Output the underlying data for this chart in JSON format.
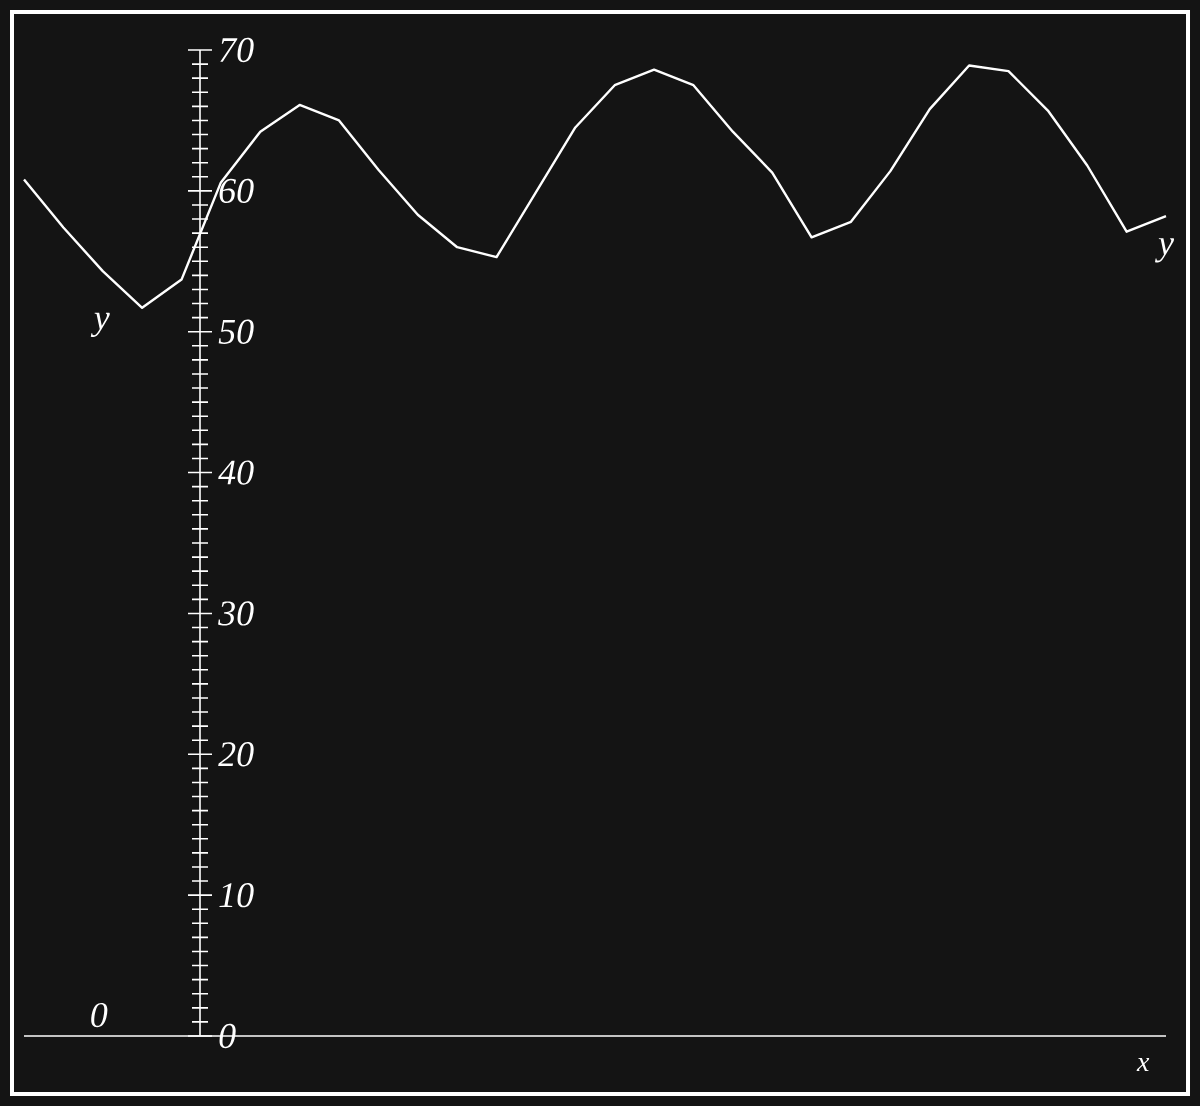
{
  "chart_data": {
    "type": "line",
    "xlabel": "x",
    "categories": [
      null,
      null,
      null,
      null,
      null,
      null,
      null,
      null,
      null,
      null,
      null,
      null,
      null,
      null,
      null,
      null,
      null,
      null,
      null,
      null,
      null,
      null,
      null,
      null,
      null,
      null,
      null,
      null,
      null,
      null
    ],
    "series": [
      {
        "color": "#ffffff",
        "values": [
          60.8,
          57.4,
          54.3,
          51.7,
          53.7,
          60.6,
          64.2,
          66.1,
          65,
          61.5,
          58.3,
          56,
          55.3,
          59.9,
          64.5,
          67.5,
          68.6,
          67.5,
          64.2,
          61.3,
          56.7,
          57.8,
          61.4,
          65.8,
          68.9,
          68.5,
          65.7,
          61.8,
          57.1,
          58.2
        ]
      }
    ],
    "ylim": [
      0,
      70
    ],
    "yticks": [
      0,
      10,
      20,
      30,
      40,
      50,
      60,
      70
    ],
    "tick_labels": "y",
    "annotations": [
      "y",
      "y",
      "0"
    ]
  }
}
